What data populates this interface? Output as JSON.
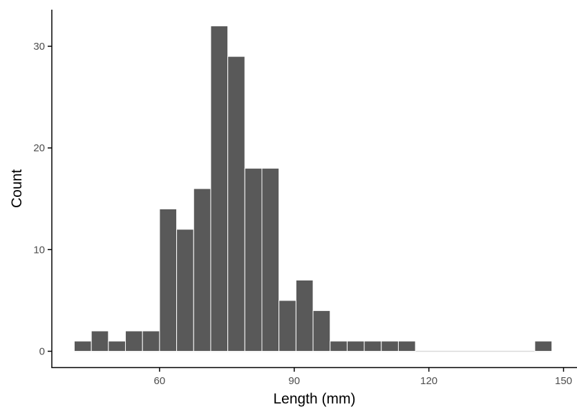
{
  "chart_data": {
    "type": "bar",
    "subtype": "histogram",
    "xlabel": "Length (mm)",
    "ylabel": "Count",
    "xlim": [
      36.0,
      153.0
    ],
    "ylim": [
      -1.6,
      33.6
    ],
    "x_ticks": [
      60,
      90,
      120,
      150
    ],
    "y_ticks": [
      0,
      10,
      20,
      30
    ],
    "bin_width": 3.8,
    "bins": [
      {
        "start": 41.0,
        "end": 44.8,
        "count": 1
      },
      {
        "start": 44.8,
        "end": 48.6,
        "count": 2
      },
      {
        "start": 48.6,
        "end": 52.4,
        "count": 1
      },
      {
        "start": 52.4,
        "end": 56.2,
        "count": 2
      },
      {
        "start": 56.2,
        "end": 60.0,
        "count": 2
      },
      {
        "start": 60.0,
        "end": 63.8,
        "count": 14
      },
      {
        "start": 63.8,
        "end": 67.6,
        "count": 12
      },
      {
        "start": 67.6,
        "end": 71.4,
        "count": 16
      },
      {
        "start": 71.4,
        "end": 75.2,
        "count": 32
      },
      {
        "start": 75.2,
        "end": 79.0,
        "count": 29
      },
      {
        "start": 79.0,
        "end": 82.8,
        "count": 18
      },
      {
        "start": 82.8,
        "end": 86.6,
        "count": 18
      },
      {
        "start": 86.6,
        "end": 90.4,
        "count": 5
      },
      {
        "start": 90.4,
        "end": 94.2,
        "count": 7
      },
      {
        "start": 94.2,
        "end": 98.0,
        "count": 4
      },
      {
        "start": 98.0,
        "end": 101.8,
        "count": 1
      },
      {
        "start": 101.8,
        "end": 105.6,
        "count": 1
      },
      {
        "start": 105.6,
        "end": 109.4,
        "count": 1
      },
      {
        "start": 109.4,
        "end": 113.2,
        "count": 1
      },
      {
        "start": 113.2,
        "end": 117.0,
        "count": 1
      },
      {
        "start": 117.0,
        "end": 120.8,
        "count": 0
      },
      {
        "start": 120.8,
        "end": 124.6,
        "count": 0
      },
      {
        "start": 124.6,
        "end": 128.4,
        "count": 0
      },
      {
        "start": 128.4,
        "end": 132.2,
        "count": 0
      },
      {
        "start": 132.2,
        "end": 136.0,
        "count": 0
      },
      {
        "start": 136.0,
        "end": 139.8,
        "count": 0
      },
      {
        "start": 139.8,
        "end": 143.6,
        "count": 0
      },
      {
        "start": 143.6,
        "end": 147.4,
        "count": 1
      }
    ],
    "grid": false,
    "legend": "none",
    "colors": {
      "bar_fill": "#595959",
      "bar_stroke": "#ffffff",
      "baseline": "#d9d9d9",
      "axis": "#000000",
      "tick_label": "#4d4d4d"
    }
  }
}
